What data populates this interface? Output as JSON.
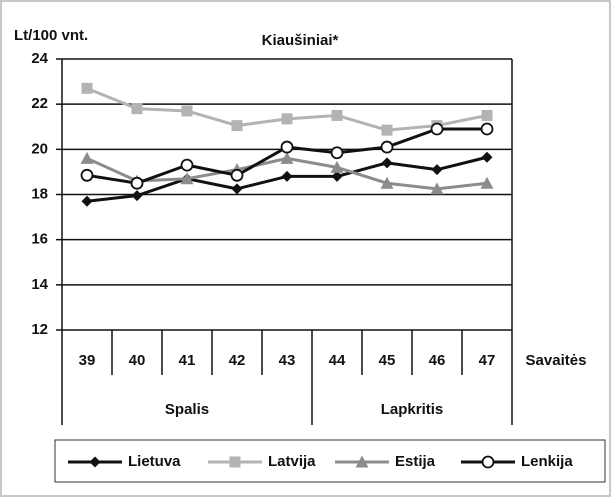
{
  "chart_data": {
    "type": "line",
    "title": "Kiaušiniai*",
    "y_label": "Lt/100 vnt.",
    "x_label": "Savaitės",
    "categories": [
      "39",
      "40",
      "41",
      "42",
      "43",
      "44",
      "45",
      "46",
      "47"
    ],
    "groups": [
      {
        "label": "Spalis",
        "count": 5
      },
      {
        "label": "Lapkritis",
        "count": 4
      }
    ],
    "series": [
      {
        "name": "Lietuva",
        "color": "#111111",
        "marker": "diamond",
        "values": [
          17.7,
          17.95,
          18.7,
          18.25,
          18.8,
          18.8,
          19.4,
          19.1,
          19.65
        ]
      },
      {
        "name": "Latvija",
        "color": "#b3b3b3",
        "marker": "square",
        "values": [
          22.7,
          21.8,
          21.7,
          21.05,
          21.35,
          21.5,
          20.85,
          21.05,
          21.5
        ]
      },
      {
        "name": "Estija",
        "color": "#8c8c8c",
        "marker": "triangle",
        "values": [
          19.6,
          18.6,
          18.7,
          19.1,
          19.6,
          19.2,
          18.5,
          18.25,
          18.5
        ]
      },
      {
        "name": "Lenkija",
        "color": "#111111",
        "marker": "circle",
        "values": [
          18.85,
          18.5,
          19.3,
          18.85,
          20.1,
          19.85,
          20.1,
          20.9,
          20.9
        ]
      }
    ],
    "ylim": [
      12,
      24
    ],
    "yticks": [
      12,
      14,
      16,
      18,
      20,
      22,
      24
    ],
    "grid": true,
    "legend": "bottom"
  }
}
